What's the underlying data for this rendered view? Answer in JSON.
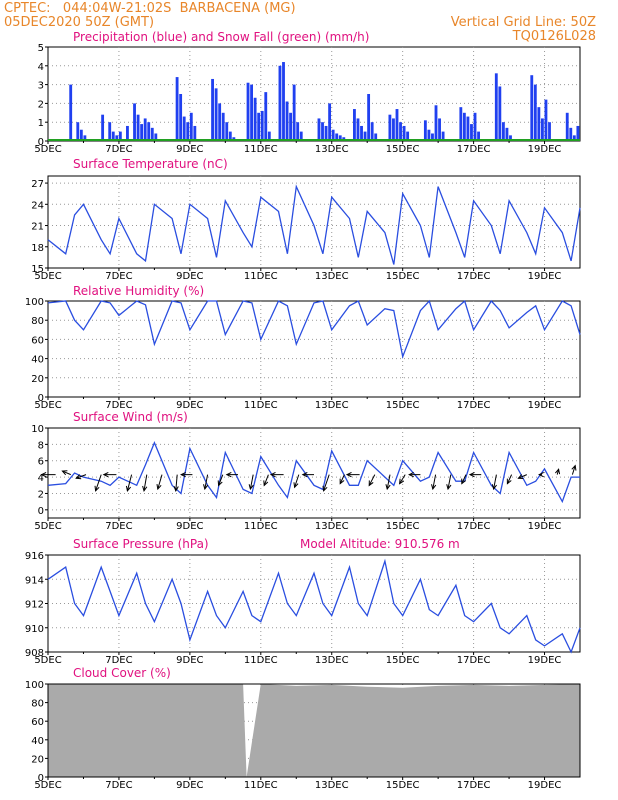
{
  "header": {
    "line1_left": "CPTEC:   044:04W-21:02S  BARBACENA (MG)",
    "line2_left": "05DEC2020 50Z (GMT)",
    "right1": "Vertical Grid Line: 50Z",
    "right2": "TQ0126L028"
  },
  "colors": {
    "header": "#e8862a",
    "panel_title": "#e0107f",
    "precip": "#2040f0",
    "snow": "#20a020",
    "line": "#2a4ee0",
    "cloud": "#aaaaaa",
    "wind_arrow": "#000000"
  },
  "chart_data": [
    {
      "type": "bar",
      "title": "Precipitation (blue) and Snow Fall (green) (mm/h)",
      "ylim": [
        0,
        5
      ],
      "yticks": [
        "0",
        "1",
        "2",
        "3",
        "4",
        "5"
      ],
      "xticks": [
        "5DEC",
        "7DEC",
        "9DEC",
        "11DEC",
        "13DEC",
        "15DEC",
        "17DEC",
        "19DEC"
      ],
      "x_range_days": [
        0,
        15
      ],
      "series": [
        {
          "name": "Precipitation",
          "x_days": [
            0.6,
            0.8,
            0.9,
            1.0,
            1.5,
            1.7,
            1.8,
            1.9,
            2.0,
            2.2,
            2.4,
            2.5,
            2.6,
            2.7,
            2.8,
            2.9,
            3.0,
            3.6,
            3.7,
            3.8,
            3.9,
            4.0,
            4.1,
            4.6,
            4.7,
            4.8,
            4.9,
            5.0,
            5.1,
            5.2,
            5.6,
            5.7,
            5.8,
            5.9,
            6.0,
            6.1,
            6.2,
            6.5,
            6.6,
            6.7,
            6.8,
            6.9,
            7.0,
            7.1,
            7.6,
            7.7,
            7.8,
            7.9,
            8.0,
            8.1,
            8.2,
            8.3,
            8.6,
            8.7,
            8.8,
            8.9,
            9.0,
            9.1,
            9.2,
            9.6,
            9.7,
            9.8,
            9.9,
            10.0,
            10.1,
            10.6,
            10.7,
            10.8,
            10.9,
            11.0,
            11.1,
            11.6,
            11.7,
            11.8,
            11.9,
            12.0,
            12.1,
            12.6,
            12.7,
            12.8,
            12.9,
            13.0,
            13.6,
            13.7,
            13.8,
            13.9,
            14.0,
            14.1,
            14.6,
            14.7,
            14.8,
            14.9
          ],
          "values": [
            3.0,
            1.0,
            0.6,
            0.3,
            1.4,
            1.0,
            0.5,
            0.3,
            0.5,
            0.8,
            2.0,
            1.4,
            0.9,
            1.2,
            1.0,
            0.7,
            0.4,
            3.4,
            2.5,
            1.3,
            1.0,
            1.5,
            0.8,
            3.3,
            2.8,
            2.0,
            1.5,
            1.0,
            0.5,
            0.2,
            3.1,
            3.0,
            2.3,
            1.5,
            1.6,
            2.6,
            0.5,
            4.0,
            4.2,
            2.1,
            1.5,
            3.0,
            1.0,
            0.5,
            1.2,
            1.0,
            0.8,
            2.0,
            0.6,
            0.4,
            0.3,
            0.2,
            1.7,
            1.2,
            0.8,
            0.5,
            2.5,
            1.0,
            0.4,
            1.4,
            1.2,
            1.7,
            1.0,
            0.8,
            0.5,
            1.1,
            0.6,
            0.4,
            1.9,
            1.2,
            0.5,
            1.8,
            1.5,
            1.3,
            0.9,
            1.5,
            0.5,
            3.6,
            2.9,
            1.0,
            0.7,
            0.3,
            3.5,
            3.0,
            1.8,
            1.2,
            2.2,
            1.0,
            1.5,
            0.7,
            0.3,
            0.8
          ]
        },
        {
          "name": "Snow Fall",
          "values": []
        }
      ]
    },
    {
      "type": "line",
      "title": "Surface Temperature (nC)",
      "ylim": [
        15,
        28
      ],
      "yticks": [
        "15",
        "18",
        "21",
        "24",
        "27"
      ],
      "xticks": [
        "5DEC",
        "7DEC",
        "9DEC",
        "11DEC",
        "13DEC",
        "15DEC",
        "17DEC",
        "19DEC"
      ],
      "x_range_days": [
        0,
        15
      ],
      "x_days": [
        0,
        0.5,
        0.75,
        1,
        1.5,
        1.75,
        2,
        2.5,
        2.75,
        3,
        3.5,
        3.75,
        4,
        4.5,
        4.75,
        5,
        5.5,
        5.75,
        6,
        6.5,
        6.75,
        7,
        7.5,
        7.75,
        8,
        8.5,
        8.75,
        9,
        9.5,
        9.75,
        10,
        10.5,
        10.75,
        11,
        11.5,
        11.75,
        12,
        12.5,
        12.75,
        13,
        13.5,
        13.75,
        14,
        14.5,
        14.75,
        15
      ],
      "values": [
        19,
        17,
        22.5,
        24,
        19,
        17,
        22,
        17,
        16,
        24,
        22,
        17,
        24,
        22,
        16.5,
        24.5,
        20,
        18,
        25,
        23,
        17,
        26.5,
        21,
        17,
        25,
        22,
        16.5,
        23,
        20,
        15.5,
        25.5,
        21,
        16.5,
        26.5,
        20,
        16.5,
        24.5,
        21,
        17,
        24.5,
        20,
        17,
        23.5,
        20,
        16,
        23.5
      ]
    },
    {
      "type": "line",
      "title": "Relative Humidity (%)",
      "ylim": [
        0,
        100
      ],
      "yticks": [
        "0",
        "20",
        "40",
        "60",
        "80",
        "100"
      ],
      "xticks": [
        "5DEC",
        "7DEC",
        "9DEC",
        "11DEC",
        "13DEC",
        "15DEC",
        "17DEC",
        "19DEC"
      ],
      "x_range_days": [
        0,
        15
      ],
      "x_days": [
        0,
        0.5,
        0.75,
        1,
        1.5,
        1.75,
        2,
        2.5,
        2.75,
        3,
        3.5,
        3.75,
        4,
        4.5,
        4.75,
        5,
        5.5,
        5.75,
        6,
        6.5,
        6.75,
        7,
        7.5,
        7.75,
        8,
        8.5,
        8.75,
        9,
        9.5,
        9.75,
        10,
        10.5,
        10.75,
        11,
        11.5,
        11.75,
        12,
        12.5,
        12.75,
        13,
        13.5,
        13.75,
        14,
        14.5,
        14.75,
        15
      ],
      "values": [
        98,
        100,
        80,
        70,
        100,
        98,
        85,
        100,
        96,
        55,
        100,
        98,
        70,
        100,
        100,
        65,
        100,
        98,
        60,
        100,
        95,
        55,
        98,
        100,
        70,
        95,
        100,
        75,
        92,
        90,
        42,
        90,
        100,
        70,
        92,
        100,
        70,
        100,
        90,
        72,
        88,
        95,
        70,
        100,
        95,
        65
      ]
    },
    {
      "type": "line",
      "title": "Surface Wind (m/s)",
      "ylim": [
        -1,
        10
      ],
      "yticks": [
        "0",
        "2",
        "4",
        "6",
        "8",
        "10"
      ],
      "xticks": [
        "5DEC",
        "7DEC",
        "9DEC",
        "11DEC",
        "13DEC",
        "15DEC",
        "17DEC",
        "19DEC"
      ],
      "x_range_days": [
        0,
        15
      ],
      "x_days": [
        0,
        0.5,
        0.75,
        1,
        1.5,
        1.75,
        2,
        2.5,
        2.75,
        3,
        3.5,
        3.75,
        4,
        4.5,
        4.75,
        5,
        5.5,
        5.75,
        6,
        6.5,
        6.75,
        7,
        7.5,
        7.75,
        8,
        8.5,
        8.75,
        9,
        9.5,
        9.75,
        10,
        10.5,
        10.75,
        11,
        11.5,
        11.75,
        12,
        12.5,
        12.75,
        13,
        13.5,
        13.75,
        14,
        14.5,
        14.75,
        15
      ],
      "values": [
        3,
        3.2,
        4.5,
        4,
        3.5,
        3,
        4,
        3,
        5.5,
        8.2,
        3,
        2,
        7.5,
        3,
        1.5,
        7,
        2.5,
        2,
        6.5,
        3,
        1.5,
        6,
        3,
        2.5,
        7.2,
        3,
        3,
        6,
        4,
        3,
        6,
        3.5,
        4,
        7,
        3.5,
        3.5,
        7,
        3,
        2,
        7,
        3,
        3.5,
        5,
        1,
        4,
        4
      ],
      "arrows_u": [
        -1,
        -0.6,
        -0.7,
        -0.4,
        -0.9,
        -0.3,
        -0.2,
        -0.3,
        -0.1,
        -0.8,
        -0.2,
        -0.3,
        -0.8,
        -0.2,
        -0.3,
        -0.9,
        -0.3,
        -0.8,
        -0.4,
        -0.3,
        -0.9,
        -0.4,
        -0.2,
        -0.4,
        -0.8,
        -0.2,
        -0.2,
        -0.3,
        -0.8,
        -0.2,
        -0.3,
        -0.6,
        -0.2,
        0.1,
        0.2
      ],
      "arrows_v": [
        0.0,
        0.2,
        -0.2,
        -0.9,
        0.0,
        -0.9,
        -0.9,
        -0.8,
        -0.9,
        0.0,
        -0.8,
        -0.6,
        0.0,
        -0.8,
        -0.6,
        0.0,
        -0.7,
        0.0,
        -0.9,
        -0.5,
        0.0,
        -0.6,
        -0.8,
        -0.5,
        0.0,
        -0.8,
        -0.8,
        -0.5,
        0.0,
        -0.8,
        -0.5,
        -0.2,
        0.0,
        0.3,
        0.5
      ]
    },
    {
      "type": "line",
      "title": "Surface Pressure (hPa)",
      "annotation": "Model Altitude: 910.576  m",
      "ylim": [
        908,
        916
      ],
      "yticks": [
        "908",
        "910",
        "912",
        "914",
        "916"
      ],
      "xticks": [
        "5DEC",
        "7DEC",
        "9DEC",
        "11DEC",
        "13DEC",
        "15DEC",
        "17DEC",
        "19DEC"
      ],
      "x_range_days": [
        0,
        15
      ],
      "x_days": [
        0,
        0.5,
        0.75,
        1,
        1.5,
        1.75,
        2,
        2.5,
        2.75,
        3,
        3.5,
        3.75,
        4,
        4.5,
        4.75,
        5,
        5.5,
        5.75,
        6,
        6.5,
        6.75,
        7,
        7.5,
        7.75,
        8,
        8.5,
        8.75,
        9,
        9.5,
        9.75,
        10,
        10.5,
        10.75,
        11,
        11.5,
        11.75,
        12,
        12.5,
        12.75,
        13,
        13.5,
        13.75,
        14,
        14.5,
        14.75,
        15
      ],
      "values": [
        914,
        915,
        912,
        911,
        915,
        913,
        911,
        914.5,
        912,
        910.5,
        914,
        912,
        909,
        913,
        911,
        910,
        913,
        911,
        910.5,
        914.5,
        912,
        911,
        914.5,
        912,
        911,
        915,
        912,
        911,
        915.5,
        912,
        911,
        914,
        911.5,
        911,
        913.5,
        911,
        910.5,
        912,
        910,
        909.5,
        911,
        909,
        908.5,
        909.5,
        908,
        910
      ]
    },
    {
      "type": "area",
      "title": "Cloud Cover (%)",
      "ylim": [
        0,
        100
      ],
      "yticks": [
        "0",
        "20",
        "40",
        "60",
        "80",
        "100"
      ],
      "xticks": [
        "5DEC",
        "7DEC",
        "9DEC",
        "11DEC",
        "13DEC",
        "15DEC",
        "17DEC",
        "19DEC"
      ],
      "x_range_days": [
        0,
        15
      ],
      "x_days": [
        0,
        5.5,
        5.6,
        6,
        7,
        8,
        9,
        10,
        11,
        12,
        13,
        14,
        15
      ],
      "values": [
        100,
        100,
        0,
        100,
        98,
        99,
        97,
        96,
        98,
        99,
        98,
        99,
        100
      ]
    }
  ]
}
